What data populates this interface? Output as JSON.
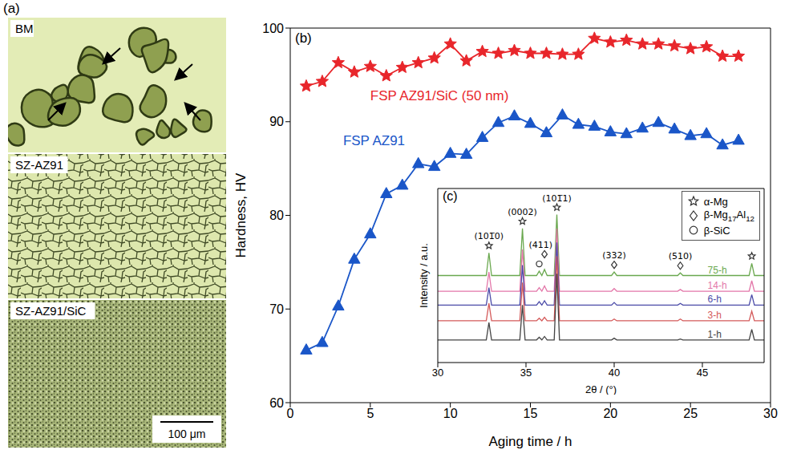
{
  "micrographs": {
    "panel_label": "(a)",
    "images": [
      {
        "label": "BM"
      },
      {
        "label": "SZ-AZ91"
      },
      {
        "label": "SZ-AZ91/SiC"
      }
    ],
    "scale_bar": "100 μm"
  },
  "chart_data": [
    {
      "type": "line",
      "panel_label": "(b)",
      "x_label": "Aging time / h",
      "y_label": "Hardness, HV",
      "xlim": [
        0,
        30
      ],
      "xticks": [
        0,
        5,
        10,
        15,
        20,
        25,
        30
      ],
      "ylim": [
        60,
        100
      ],
      "yticks": [
        60,
        70,
        80,
        90,
        100
      ],
      "x": [
        1,
        2,
        3,
        4,
        5,
        6,
        7,
        8,
        9,
        10,
        11,
        12,
        13,
        14,
        15,
        16,
        17,
        18,
        19,
        20,
        21,
        22,
        23,
        24,
        25,
        26,
        27,
        28
      ],
      "series": [
        {
          "name": "FSP AZ91/SiC (50 nm)",
          "color": "#e8262b",
          "marker": "star",
          "values": [
            93.8,
            94.3,
            96.3,
            95.3,
            95.9,
            94.9,
            95.8,
            96.3,
            96.8,
            98.3,
            96.5,
            97.5,
            97.3,
            97.6,
            97.3,
            97.3,
            97.2,
            97.2,
            98.9,
            98.5,
            98.7,
            98.3,
            98.3,
            98.1,
            97.8,
            98.0,
            97.0,
            97.0
          ]
        },
        {
          "name": "FSP AZ91",
          "color": "#1a56c8",
          "marker": "triangle",
          "values": [
            65.6,
            66.4,
            70.3,
            75.3,
            78.0,
            82.3,
            83.2,
            85.5,
            85.2,
            86.6,
            86.5,
            88.3,
            89.9,
            90.6,
            89.8,
            88.8,
            90.7,
            89.7,
            89.5,
            88.9,
            88.7,
            89.3,
            89.9,
            89.2,
            88.5,
            88.7,
            87.5,
            88.0
          ]
        }
      ]
    },
    {
      "type": "line",
      "panel_label": "(c)",
      "x_label": "2θ / (°)",
      "y_label": "Intensity / a.u.",
      "xlim": [
        30,
        48.5
      ],
      "xticks": [
        30,
        35,
        40,
        45
      ],
      "ylim": [
        0,
        100
      ],
      "tick_labels": "x",
      "legend": "upper right",
      "x": [
        30,
        32.75,
        32.9,
        33.05,
        34.65,
        34.8,
        34.95,
        35.6,
        35.75,
        35.9,
        36.05,
        36.2,
        36.6,
        36.75,
        36.9,
        39.85,
        40.0,
        40.15,
        43.6,
        43.75,
        43.9,
        47.65,
        47.8,
        47.95,
        48.5
      ],
      "series": [
        {
          "name": "75-h",
          "color": "#6aa84f",
          "values": [
            50,
            50,
            63,
            50,
            50,
            77,
            50,
            50,
            52.5,
            50,
            53.5,
            50,
            50,
            85,
            50,
            50,
            52,
            50,
            50,
            51.5,
            50,
            50,
            57,
            50,
            50
          ]
        },
        {
          "name": "14-h",
          "color": "#e377a9",
          "values": [
            41,
            41,
            52,
            41,
            41,
            65,
            41,
            41,
            43,
            41,
            44,
            41,
            41,
            77,
            41,
            41,
            42.5,
            41,
            41,
            42,
            41,
            41,
            47,
            41,
            41
          ]
        },
        {
          "name": "6-h",
          "color": "#4b4ba8",
          "values": [
            33,
            33,
            43,
            33,
            33,
            56,
            33,
            33,
            35,
            33,
            35.5,
            33,
            33,
            69,
            33,
            33,
            34.5,
            33,
            33,
            34,
            33,
            33,
            39,
            33,
            33
          ]
        },
        {
          "name": "3-h",
          "color": "#d45a5a",
          "values": [
            24,
            24,
            34,
            24,
            24,
            46,
            24,
            24,
            25.5,
            24,
            26,
            24,
            24,
            61,
            24,
            24,
            25,
            24,
            24,
            25,
            24,
            24,
            29.5,
            24,
            24
          ]
        },
        {
          "name": "1-h",
          "color": "#444444",
          "values": [
            13,
            13,
            23,
            13,
            13,
            33,
            13,
            13,
            14.5,
            13,
            15,
            13,
            13,
            51,
            13,
            13,
            14,
            13,
            13,
            13.5,
            13,
            13,
            19,
            13,
            13
          ]
        }
      ],
      "phases": [
        {
          "name": "α-Mg",
          "marker": "star"
        },
        {
          "name": "β-Mg17Al12",
          "marker": "diamond"
        },
        {
          "name": "β-SiC",
          "marker": "circle"
        }
      ],
      "peaks": [
        {
          "x": 32.9,
          "phase": "α-Mg",
          "label": "(101̅0)"
        },
        {
          "x": 34.8,
          "phase": "α-Mg",
          "label": "(0002)"
        },
        {
          "x": 35.75,
          "phase": "β-SiC"
        },
        {
          "x": 36.05,
          "phase": "β-Mg17Al12",
          "label": "(411)"
        },
        {
          "x": 36.75,
          "phase": "α-Mg",
          "label": "(101̅1)"
        },
        {
          "x": 40.0,
          "phase": "β-Mg17Al12",
          "label": "(332)"
        },
        {
          "x": 43.75,
          "phase": "β-Mg17Al12",
          "label": "(510)"
        },
        {
          "x": 47.8,
          "phase": "α-Mg"
        }
      ]
    }
  ]
}
